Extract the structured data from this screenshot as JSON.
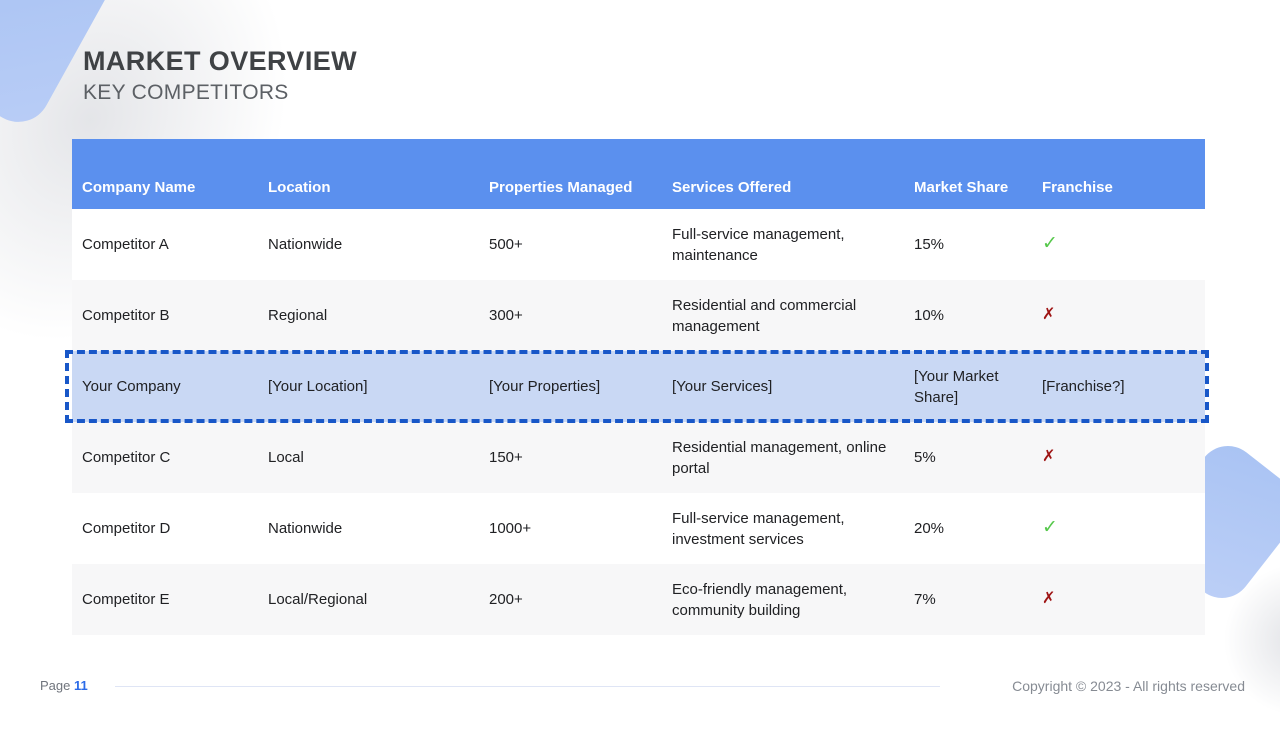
{
  "slide": {
    "title": "MARKET OVERVIEW",
    "subtitle": "KEY COMPETITORS"
  },
  "table": {
    "columns": [
      "Company Name",
      "Location",
      "Properties Managed",
      "Services Offered",
      "Market Share",
      "Franchise"
    ],
    "rows": [
      {
        "company": "Competitor A",
        "location": "Nationwide",
        "properties": "500+",
        "services": "Full-service management, maintenance",
        "market_share": "15%",
        "franchise": "yes",
        "highlighted": false
      },
      {
        "company": "Competitor B",
        "location": "Regional",
        "properties": "300+",
        "services": "Residential and commercial management",
        "market_share": "10%",
        "franchise": "no",
        "highlighted": false
      },
      {
        "company": "Your Company",
        "location": "[Your Location]",
        "properties": "[Your Properties]",
        "services": "[Your Services]",
        "market_share": "[Your Market Share]",
        "franchise": "[Franchise?]",
        "highlighted": true
      },
      {
        "company": "Competitor C",
        "location": "Local",
        "properties": "150+",
        "services": "Residential management, online portal",
        "market_share": "5%",
        "franchise": "no",
        "highlighted": false
      },
      {
        "company": "Competitor D",
        "location": "Nationwide",
        "properties": "1000+",
        "services": "Full-service management, investment services",
        "market_share": "20%",
        "franchise": "yes",
        "highlighted": false
      },
      {
        "company": "Competitor E",
        "location": "Local/Regional",
        "properties": "200+",
        "services": "Eco-friendly management, community building",
        "market_share": "7%",
        "franchise": "no",
        "highlighted": false
      }
    ]
  },
  "icons": {
    "check_glyph": "✓",
    "cross_glyph": "✗"
  },
  "footer": {
    "page_label": "Page",
    "page_number": "11",
    "copyright": "Copyright © 2023 - All rights reserved"
  },
  "colors": {
    "header_bg": "#5b90ee",
    "header_text": "#ffffff",
    "highlight_bg": "#c9d8f4",
    "highlight_border": "#1857c8",
    "row_alt_bg": "#f7f7f8",
    "check_green": "#56c84b",
    "cross_red": "#9e1414",
    "page_number_blue": "#2b6be8",
    "accent_shape_blue": "#aec7f4"
  }
}
